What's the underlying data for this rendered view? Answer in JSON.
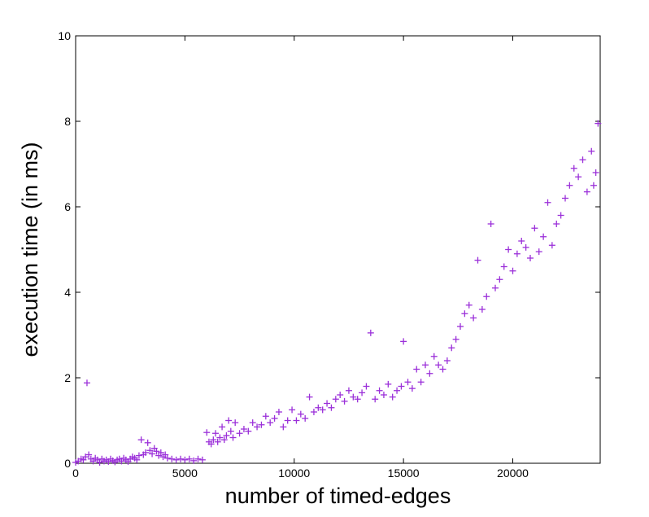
{
  "chart_data": {
    "type": "scatter",
    "xlabel": "number of timed-edges",
    "ylabel": "execution time (in ms)",
    "xlim": [
      0,
      24000
    ],
    "ylim": [
      0,
      10
    ],
    "x_ticks": [
      0,
      5000,
      10000,
      15000,
      20000
    ],
    "y_ticks": [
      0,
      2,
      4,
      6,
      8,
      10
    ],
    "grid": false,
    "marker": "+",
    "marker_color": "#9b30d9",
    "series": [
      {
        "points": [
          [
            0,
            0.02
          ],
          [
            120,
            0.05
          ],
          [
            250,
            0.1
          ],
          [
            350,
            0.08
          ],
          [
            450,
            0.15
          ],
          [
            520,
            1.88
          ],
          [
            600,
            0.2
          ],
          [
            700,
            0.1
          ],
          [
            800,
            0.05
          ],
          [
            900,
            0.12
          ],
          [
            1000,
            0.08
          ],
          [
            1100,
            0.02
          ],
          [
            1200,
            0.1
          ],
          [
            1300,
            0.05
          ],
          [
            1400,
            0.08
          ],
          [
            1500,
            0.04
          ],
          [
            1600,
            0.1
          ],
          [
            1700,
            0.06
          ],
          [
            1800,
            0.03
          ],
          [
            1900,
            0.08
          ],
          [
            2000,
            0.1
          ],
          [
            2100,
            0.05
          ],
          [
            2200,
            0.12
          ],
          [
            2300,
            0.08
          ],
          [
            2400,
            0.04
          ],
          [
            2500,
            0.1
          ],
          [
            2600,
            0.15
          ],
          [
            2700,
            0.12
          ],
          [
            2800,
            0.08
          ],
          [
            2900,
            0.18
          ],
          [
            3000,
            0.55
          ],
          [
            3100,
            0.2
          ],
          [
            3200,
            0.25
          ],
          [
            3300,
            0.48
          ],
          [
            3400,
            0.3
          ],
          [
            3500,
            0.22
          ],
          [
            3600,
            0.35
          ],
          [
            3700,
            0.28
          ],
          [
            3800,
            0.18
          ],
          [
            3900,
            0.25
          ],
          [
            4000,
            0.15
          ],
          [
            4100,
            0.2
          ],
          [
            4200,
            0.12
          ],
          [
            4400,
            0.1
          ],
          [
            4600,
            0.08
          ],
          [
            4800,
            0.1
          ],
          [
            5000,
            0.08
          ],
          [
            5200,
            0.1
          ],
          [
            5400,
            0.06
          ],
          [
            5600,
            0.1
          ],
          [
            5800,
            0.08
          ],
          [
            6000,
            0.72
          ],
          [
            6100,
            0.5
          ],
          [
            6200,
            0.45
          ],
          [
            6300,
            0.55
          ],
          [
            6400,
            0.7
          ],
          [
            6500,
            0.5
          ],
          [
            6600,
            0.6
          ],
          [
            6700,
            0.85
          ],
          [
            6800,
            0.55
          ],
          [
            6900,
            0.65
          ],
          [
            7000,
            1.0
          ],
          [
            7100,
            0.75
          ],
          [
            7200,
            0.6
          ],
          [
            7300,
            0.95
          ],
          [
            7500,
            0.7
          ],
          [
            7700,
            0.8
          ],
          [
            7900,
            0.75
          ],
          [
            8100,
            0.95
          ],
          [
            8300,
            0.85
          ],
          [
            8500,
            0.9
          ],
          [
            8700,
            1.1
          ],
          [
            8900,
            0.95
          ],
          [
            9100,
            1.05
          ],
          [
            9300,
            1.2
          ],
          [
            9500,
            0.85
          ],
          [
            9700,
            1.0
          ],
          [
            9900,
            1.25
          ],
          [
            10100,
            1.0
          ],
          [
            10300,
            1.15
          ],
          [
            10500,
            1.05
          ],
          [
            10700,
            1.55
          ],
          [
            10900,
            1.2
          ],
          [
            11100,
            1.3
          ],
          [
            11300,
            1.25
          ],
          [
            11500,
            1.4
          ],
          [
            11700,
            1.3
          ],
          [
            11900,
            1.5
          ],
          [
            12100,
            1.6
          ],
          [
            12300,
            1.45
          ],
          [
            12500,
            1.7
          ],
          [
            12700,
            1.55
          ],
          [
            12900,
            1.5
          ],
          [
            13100,
            1.65
          ],
          [
            13300,
            1.8
          ],
          [
            13500,
            3.05
          ],
          [
            13700,
            1.5
          ],
          [
            13900,
            1.7
          ],
          [
            14100,
            1.6
          ],
          [
            14300,
            1.85
          ],
          [
            14500,
            1.55
          ],
          [
            14700,
            1.7
          ],
          [
            14900,
            1.8
          ],
          [
            15000,
            2.85
          ],
          [
            15200,
            1.9
          ],
          [
            15400,
            1.75
          ],
          [
            15600,
            2.2
          ],
          [
            15800,
            1.9
          ],
          [
            16000,
            2.3
          ],
          [
            16200,
            2.1
          ],
          [
            16400,
            2.5
          ],
          [
            16600,
            2.3
          ],
          [
            16800,
            2.2
          ],
          [
            17000,
            2.4
          ],
          [
            17200,
            2.7
          ],
          [
            17400,
            2.9
          ],
          [
            17600,
            3.2
          ],
          [
            17800,
            3.5
          ],
          [
            18000,
            3.7
          ],
          [
            18200,
            3.4
          ],
          [
            18400,
            4.75
          ],
          [
            18600,
            3.6
          ],
          [
            18800,
            3.9
          ],
          [
            19000,
            5.6
          ],
          [
            19200,
            4.1
          ],
          [
            19400,
            4.3
          ],
          [
            19600,
            4.6
          ],
          [
            19800,
            5.0
          ],
          [
            20000,
            4.5
          ],
          [
            20200,
            4.9
          ],
          [
            20400,
            5.2
          ],
          [
            20600,
            5.05
          ],
          [
            20800,
            4.8
          ],
          [
            21000,
            5.5
          ],
          [
            21200,
            4.95
          ],
          [
            21400,
            5.3
          ],
          [
            21600,
            6.1
          ],
          [
            21800,
            5.1
          ],
          [
            22000,
            5.6
          ],
          [
            22200,
            5.8
          ],
          [
            22400,
            6.2
          ],
          [
            22600,
            6.5
          ],
          [
            22800,
            6.9
          ],
          [
            23000,
            6.7
          ],
          [
            23200,
            7.1
          ],
          [
            23400,
            6.35
          ],
          [
            23600,
            7.3
          ],
          [
            23700,
            6.5
          ],
          [
            23800,
            6.8
          ],
          [
            23900,
            7.95
          ]
        ]
      }
    ]
  }
}
